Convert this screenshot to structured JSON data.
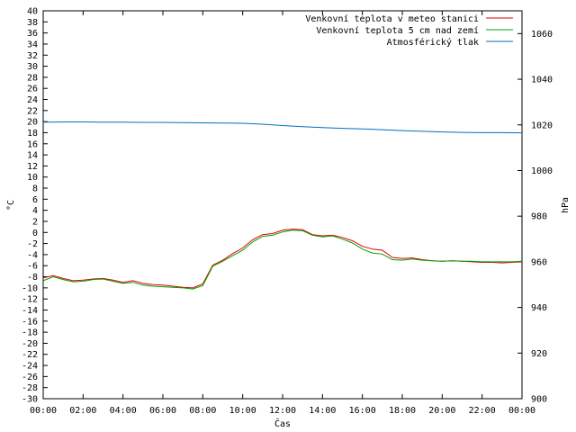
{
  "chart_data": {
    "type": "line",
    "xlabel": "Čas",
    "ylabel_left": "°C",
    "ylabel_right": "hPa",
    "ylim_left": [
      -30,
      40
    ],
    "ylim_right": [
      900,
      1070
    ],
    "xlim_hours": [
      0,
      24
    ],
    "x_ticks": [
      "00:00",
      "02:00",
      "04:00",
      "06:00",
      "08:00",
      "10:00",
      "12:00",
      "14:00",
      "16:00",
      "18:00",
      "20:00",
      "22:00",
      "00:00"
    ],
    "y_ticks_left": [
      40,
      38,
      36,
      34,
      32,
      30,
      28,
      26,
      24,
      22,
      20,
      18,
      16,
      14,
      12,
      10,
      8,
      6,
      4,
      2,
      0,
      -2,
      -4,
      -6,
      -8,
      -10,
      -12,
      -14,
      -16,
      -18,
      -20,
      -22,
      -24,
      -26,
      -28,
      -30
    ],
    "y_ticks_right": [
      1060,
      1040,
      1020,
      1000,
      980,
      960,
      940,
      920,
      900
    ],
    "grid": false,
    "legend_position": "top-right",
    "series": [
      {
        "name": "Venkovní teplota v meteo stanici",
        "color": "#e00000",
        "axis": "left",
        "x": [
          0,
          0.5,
          1,
          1.5,
          2,
          2.5,
          3,
          3.5,
          4,
          4.5,
          5,
          5.5,
          6,
          6.5,
          7,
          7.5,
          8,
          8.5,
          9,
          9.5,
          10,
          10.5,
          11,
          11.5,
          12,
          12.5,
          13,
          13.5,
          14,
          14.5,
          15,
          15.5,
          16,
          16.5,
          17,
          17.5,
          18,
          18.5,
          19,
          19.5,
          20,
          20.5,
          21,
          21.5,
          22,
          22.5,
          23,
          23.5,
          24
        ],
        "values": [
          -8.2,
          -7.8,
          -8.3,
          -8.7,
          -8.6,
          -8.4,
          -8.3,
          -8.6,
          -9.0,
          -8.7,
          -9.2,
          -9.4,
          -9.5,
          -9.7,
          -9.9,
          -10.0,
          -9.3,
          -5.9,
          -5.0,
          -3.8,
          -2.8,
          -1.3,
          -0.4,
          -0.2,
          0.4,
          0.6,
          0.5,
          -0.4,
          -0.6,
          -0.5,
          -0.9,
          -1.5,
          -2.5,
          -3.0,
          -3.2,
          -4.5,
          -4.7,
          -4.6,
          -4.9,
          -5.1,
          -5.2,
          -5.1,
          -5.2,
          -5.3,
          -5.4,
          -5.4,
          -5.5,
          -5.4,
          -5.3
        ]
      },
      {
        "name": "Venkovní teplota 5 cm nad zemí",
        "color": "#00a000",
        "axis": "left",
        "x": [
          0,
          0.5,
          1,
          1.5,
          2,
          2.5,
          3,
          3.5,
          4,
          4.5,
          5,
          5.5,
          6,
          6.5,
          7,
          7.5,
          8,
          8.5,
          9,
          9.5,
          10,
          10.5,
          11,
          11.5,
          12,
          12.5,
          13,
          13.5,
          14,
          14.5,
          15,
          15.5,
          16,
          16.5,
          17,
          17.5,
          18,
          18.5,
          19,
          19.5,
          20,
          20.5,
          21,
          21.5,
          22,
          22.5,
          23,
          23.5,
          24
        ],
        "values": [
          -8.7,
          -8.0,
          -8.5,
          -8.9,
          -8.8,
          -8.5,
          -8.4,
          -8.8,
          -9.2,
          -9.0,
          -9.5,
          -9.7,
          -9.8,
          -9.9,
          -10.0,
          -10.2,
          -9.6,
          -6.1,
          -5.2,
          -4.2,
          -3.2,
          -1.7,
          -0.7,
          -0.5,
          0.1,
          0.4,
          0.3,
          -0.5,
          -0.8,
          -0.6,
          -1.2,
          -1.9,
          -3.0,
          -3.7,
          -3.9,
          -4.9,
          -5.0,
          -4.8,
          -5.0,
          -5.1,
          -5.2,
          -5.1,
          -5.2,
          -5.2,
          -5.3,
          -5.3,
          -5.3,
          -5.3,
          -5.2
        ]
      },
      {
        "name": "Atmosférický tlak",
        "color": "#0070c0",
        "axis": "right",
        "x": [
          0,
          1,
          2,
          3,
          4,
          5,
          6,
          7,
          8,
          9,
          10,
          11,
          12,
          13,
          14,
          15,
          16,
          17,
          18,
          19,
          20,
          21,
          22,
          23,
          24
        ],
        "values": [
          1021.2,
          1021.3,
          1021.3,
          1021.2,
          1021.2,
          1021.1,
          1021.1,
          1021.0,
          1020.9,
          1020.8,
          1020.7,
          1020.3,
          1019.7,
          1019.2,
          1018.8,
          1018.5,
          1018.2,
          1017.9,
          1017.5,
          1017.2,
          1016.9,
          1016.7,
          1016.6,
          1016.6,
          1016.5
        ]
      }
    ]
  }
}
